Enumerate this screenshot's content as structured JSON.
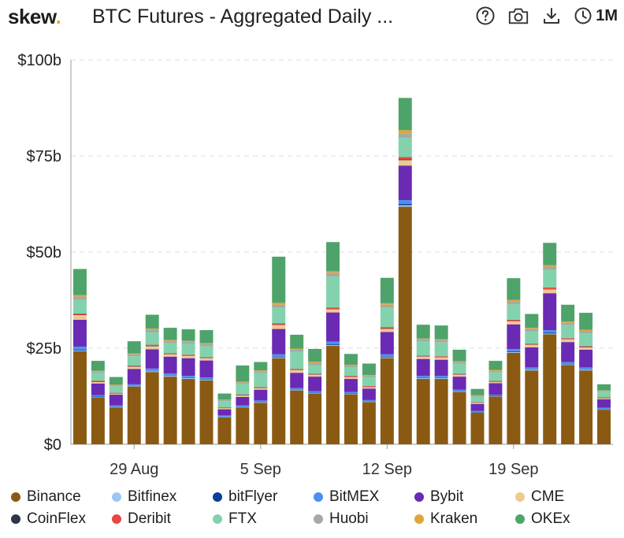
{
  "header": {
    "logo_text": "skew",
    "logo_dot": ".",
    "title": "BTC Futures - Aggregated Daily ...",
    "range_label": "1M",
    "icons": [
      "help-icon",
      "camera-icon",
      "download-icon",
      "clock-icon"
    ]
  },
  "colors": {
    "brand_dot": "#f2a71b"
  },
  "chart_data": {
    "type": "bar",
    "stacked": true,
    "xlabel": "",
    "ylabel": "",
    "ylim": [
      0,
      100
    ],
    "y_ticks": [
      0,
      25,
      50,
      75,
      100
    ],
    "y_tick_labels": [
      "$0",
      "$25b",
      "$50b",
      "$75b",
      "$100b"
    ],
    "x_tick_labels": [
      {
        "label": "29 Aug",
        "index": 3
      },
      {
        "label": "5 Sep",
        "index": 10
      },
      {
        "label": "12 Sep",
        "index": 17
      },
      {
        "label": "19 Sep",
        "index": 24
      }
    ],
    "grid": true,
    "legend_position": "bottom",
    "categories": [
      "26 Aug",
      "27 Aug",
      "28 Aug",
      "29 Aug",
      "30 Aug",
      "31 Aug",
      "1 Sep",
      "2 Sep",
      "3 Sep",
      "4 Sep",
      "5 Sep",
      "6 Sep",
      "7 Sep",
      "8 Sep",
      "9 Sep",
      "10 Sep",
      "11 Sep",
      "12 Sep",
      "13 Sep",
      "14 Sep",
      "15 Sep",
      "16 Sep",
      "17 Sep",
      "18 Sep",
      "19 Sep",
      "20 Sep",
      "21 Sep",
      "22 Sep",
      "23 Sep",
      "24 Sep"
    ],
    "series": [
      {
        "name": "Binance",
        "color": "#8a5a12",
        "values": [
          24.2,
          12.2,
          9.6,
          15,
          18.8,
          17.6,
          17,
          16.6,
          7,
          9.6,
          10.8,
          22.4,
          14,
          13.2,
          25.6,
          13,
          11,
          22.4,
          61.8,
          17,
          17,
          13.6,
          8.2,
          12.4,
          23.8,
          19.2,
          28.6,
          20.6,
          19.2,
          9
        ]
      },
      {
        "name": "Bitfinex",
        "color": "#9cc7f2",
        "values": [
          0.2,
          0.1,
          0.1,
          0.1,
          0.2,
          0.2,
          0.2,
          0.2,
          0.1,
          0.1,
          0.1,
          0.2,
          0.1,
          0.1,
          0.2,
          0.1,
          0.1,
          0.2,
          0.4,
          0.2,
          0.2,
          0.1,
          0.1,
          0.1,
          0.2,
          0.2,
          0.2,
          0.2,
          0.2,
          0.1
        ]
      },
      {
        "name": "bitFlyer",
        "color": "#0b3f9a",
        "values": [
          0.2,
          0.1,
          0.1,
          0.1,
          0.1,
          0.1,
          0.1,
          0.1,
          0.1,
          0.1,
          0.1,
          0.2,
          0.1,
          0.1,
          0.2,
          0.1,
          0.1,
          0.2,
          0.3,
          0.1,
          0.1,
          0.1,
          0.1,
          0.1,
          0.2,
          0.1,
          0.2,
          0.1,
          0.1,
          0.1
        ]
      },
      {
        "name": "BitMEX",
        "color": "#4c8ff0",
        "values": [
          0.8,
          0.4,
          0.3,
          0.4,
          0.6,
          0.5,
          0.5,
          0.5,
          0.3,
          0.3,
          0.4,
          0.6,
          0.4,
          0.4,
          0.7,
          0.4,
          0.3,
          0.6,
          1,
          0.5,
          0.5,
          0.4,
          0.3,
          0.3,
          0.6,
          0.5,
          0.7,
          0.5,
          0.5,
          0.3
        ]
      },
      {
        "name": "Bybit",
        "color": "#6a2ab4",
        "values": [
          7,
          3,
          2.8,
          4,
          5,
          4.4,
          4.6,
          4.4,
          1.6,
          2.2,
          2.8,
          6.6,
          4,
          3.8,
          7.6,
          3.4,
          3,
          5.8,
          9,
          4.4,
          4.2,
          3.4,
          1.8,
          3,
          6.4,
          5.2,
          9.6,
          5.2,
          4.6,
          2.2
        ]
      },
      {
        "name": "CME",
        "color": "#f0c98f",
        "values": [
          1.2,
          0.4,
          0.3,
          0.6,
          0.8,
          0.6,
          0.6,
          0.6,
          0.3,
          0.4,
          0.4,
          1,
          0.7,
          0.5,
          0.8,
          0.5,
          0.4,
          0.8,
          1.4,
          0.6,
          0.6,
          0.5,
          0.3,
          0.4,
          0.8,
          0.7,
          1,
          0.7,
          0.6,
          0.3
        ]
      },
      {
        "name": "CoinFlex",
        "color": "#2d3642",
        "values": [
          0.1,
          0.1,
          0.1,
          0.1,
          0.1,
          0.1,
          0.1,
          0.1,
          0.1,
          0.1,
          0.1,
          0.1,
          0.1,
          0.1,
          0.1,
          0.1,
          0.1,
          0.1,
          0.2,
          0.1,
          0.1,
          0.1,
          0.1,
          0.1,
          0.1,
          0.1,
          0.1,
          0.1,
          0.1,
          0.1
        ]
      },
      {
        "name": "Deribit",
        "color": "#e84545",
        "values": [
          0.3,
          0.2,
          0.1,
          0.2,
          0.3,
          0.2,
          0.2,
          0.2,
          0.1,
          0.1,
          0.2,
          0.4,
          0.2,
          0.2,
          0.4,
          0.2,
          0.2,
          0.4,
          0.6,
          0.2,
          0.2,
          0.2,
          0.1,
          0.1,
          0.3,
          0.2,
          0.4,
          0.2,
          0.2,
          0.1
        ]
      },
      {
        "name": "FTX",
        "color": "#82d3ad",
        "values": [
          3.6,
          2,
          1.6,
          2.4,
          3.2,
          2.6,
          2.8,
          2.8,
          1.6,
          2.8,
          3.6,
          4,
          4.4,
          2.2,
          8,
          2.2,
          2.2,
          5,
          5,
          3.6,
          3.6,
          2.6,
          1.4,
          2.2,
          4,
          3.2,
          4.6,
          3.4,
          3.4,
          1.4
        ]
      },
      {
        "name": "Huobi",
        "color": "#a4aaa6",
        "values": [
          0.8,
          0.4,
          0.3,
          0.5,
          0.7,
          0.6,
          0.6,
          0.6,
          0.3,
          0.4,
          0.5,
          0.8,
          0.6,
          0.6,
          1,
          0.5,
          0.4,
          0.8,
          1.2,
          0.6,
          0.6,
          0.4,
          0.3,
          0.4,
          0.8,
          0.6,
          0.8,
          0.6,
          0.6,
          0.3
        ]
      },
      {
        "name": "Kraken",
        "color": "#e0a43a",
        "values": [
          0.4,
          0.2,
          0.2,
          0.2,
          0.3,
          0.2,
          0.2,
          0.2,
          0.1,
          0.2,
          0.2,
          0.5,
          0.3,
          0.3,
          0.4,
          0.2,
          0.2,
          0.4,
          0.8,
          0.2,
          0.2,
          0.2,
          0.1,
          0.2,
          0.4,
          0.3,
          0.4,
          0.3,
          0.3,
          0.1
        ]
      },
      {
        "name": "OKEx",
        "color": "#4ea36a",
        "values": [
          6.8,
          2.6,
          2,
          3.2,
          3.6,
          3.2,
          3,
          3.4,
          1.6,
          4.2,
          2.2,
          12,
          3.6,
          3.3,
          7.6,
          2.8,
          3,
          6.6,
          8.4,
          3.6,
          3.6,
          3,
          1.6,
          2.4,
          5.6,
          3.6,
          5.8,
          4.4,
          4.4,
          1.6
        ]
      }
    ]
  }
}
